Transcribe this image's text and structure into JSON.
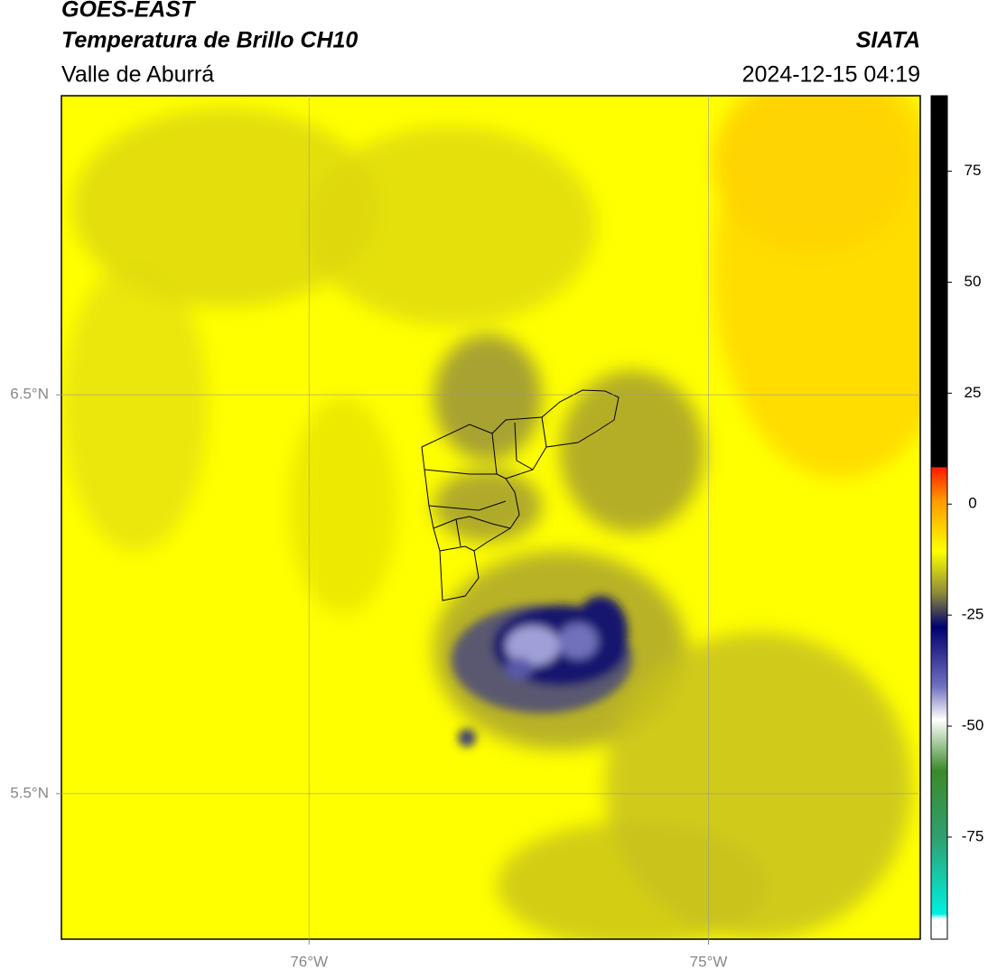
{
  "header": {
    "satellite": "GOES-EAST",
    "product": "Temperatura de Brillo CH10",
    "region": "Valle de Aburrá",
    "source": "SIATA",
    "timestamp": "2024-12-15 04:19"
  },
  "map": {
    "xlim": [
      -76.62,
      -74.47
    ],
    "ylim": [
      5.135,
      7.25
    ],
    "xticks": [
      {
        "value": -76,
        "label": "76°W"
      },
      {
        "value": -75,
        "label": "75°W"
      }
    ],
    "yticks": [
      {
        "value": 6.5,
        "label": "6.5°N"
      },
      {
        "value": 5.5,
        "label": "5.5°N"
      }
    ],
    "grid": true
  },
  "colorbar": {
    "lim": [
      -98,
      92
    ],
    "ticks": [
      75,
      50,
      25,
      0,
      -25,
      -50,
      -75
    ]
  }
}
